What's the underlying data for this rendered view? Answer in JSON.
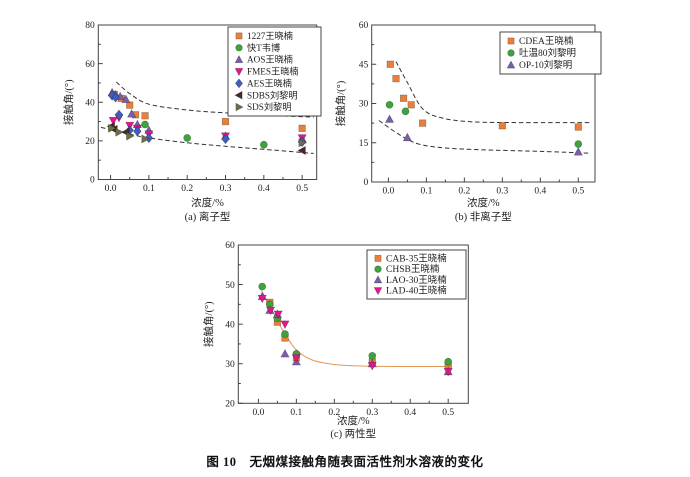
{
  "figure_caption": "图 10　无烟煤接触角随表面活性剂水溶液的变化",
  "chart_data": [
    {
      "id": "chart-a",
      "type": "scatter",
      "title": "(a) 离子型",
      "xlabel": "浓度/%",
      "ylabel": "接触角/(°)",
      "xlim": [
        -0.032,
        0.538
      ],
      "ylim": [
        0,
        80
      ],
      "xticks": [
        "0.0",
        "0.1",
        "0.2",
        "0.3",
        "0.4",
        "0.5"
      ],
      "yticks": [
        "0",
        "20",
        "40",
        "60",
        "80"
      ],
      "legend_position": "top-right",
      "grid": false,
      "series": [
        {
          "name": "1227王晓楠",
          "marker": "square",
          "color": "#E8803C",
          "points": [
            [
              0.01,
              44
            ],
            [
              0.028,
              42
            ],
            [
              0.05,
              38.5
            ],
            [
              0.065,
              33.5
            ],
            [
              0.09,
              33
            ],
            [
              0.3,
              30
            ],
            [
              0.5,
              26.5
            ]
          ]
        },
        {
          "name": "快T韦博",
          "marker": "circle",
          "color": "#3DA43D",
          "points": [
            [
              0.09,
              28.5
            ],
            [
              0.2,
              21.5
            ],
            [
              0.4,
              18
            ]
          ]
        },
        {
          "name": "AOS王晓楠",
          "marker": "triangle-up",
          "color": "#7A5EA8",
          "points": [
            [
              0.004,
              45
            ],
            [
              0.012,
              44
            ],
            [
              0.025,
              43
            ],
            [
              0.04,
              41.5
            ],
            [
              0.055,
              34
            ],
            [
              0.07,
              28.5
            ],
            [
              0.1,
              25.5
            ],
            [
              0.3,
              22.5
            ],
            [
              0.5,
              21
            ]
          ]
        },
        {
          "name": "FMES王晓楠",
          "marker": "triangle-down",
          "color": "#E8138D",
          "points": [
            [
              0.007,
              30.5
            ],
            [
              0.022,
              32
            ],
            [
              0.05,
              28
            ],
            [
              0.07,
              26.5
            ],
            [
              0.1,
              23.5
            ],
            [
              0.3,
              22.5
            ],
            [
              0.5,
              21.5
            ]
          ]
        },
        {
          "name": "AES王晓楠",
          "marker": "diamond",
          "color": "#3D5EC0",
          "points": [
            [
              0.004,
              43.5
            ],
            [
              0.013,
              42.5
            ],
            [
              0.022,
              33.5
            ],
            [
              0.05,
              25.5
            ],
            [
              0.07,
              25
            ],
            [
              0.1,
              21.5
            ],
            [
              0.3,
              21
            ],
            [
              0.5,
              19.5
            ]
          ]
        },
        {
          "name": "SDBS刘黎明",
          "marker": "triangle-left",
          "color": "#4A2630",
          "points": [
            [
              0.002,
              27.5
            ],
            [
              0.009,
              26
            ],
            [
              0.04,
              24.5
            ],
            [
              0.5,
              15
            ]
          ]
        },
        {
          "name": "SDS刘黎明",
          "marker": "triangle-right",
          "color": "#6E6E46",
          "points": [
            [
              0.003,
              26.5
            ],
            [
              0.022,
              24.5
            ],
            [
              0.05,
              22.5
            ],
            [
              0.09,
              21
            ],
            [
              0.5,
              19
            ]
          ]
        }
      ],
      "dashed_curves": [
        {
          "color": "#333333",
          "points": [
            [
              0.015,
              50.5
            ],
            [
              0.05,
              44.5
            ],
            [
              0.1,
              39
            ],
            [
              0.2,
              36
            ],
            [
              0.3,
              34.5
            ],
            [
              0.42,
              33.2
            ],
            [
              0.53,
              32.3
            ]
          ]
        },
        {
          "color": "#333333",
          "points": [
            [
              -0.025,
              27
            ],
            [
              0.05,
              23.5
            ],
            [
              0.1,
              21.5
            ],
            [
              0.2,
              19
            ],
            [
              0.3,
              17.2
            ],
            [
              0.42,
              15.3
            ],
            [
              0.53,
              13.5
            ]
          ]
        }
      ],
      "fit_curve": null
    },
    {
      "id": "chart-b",
      "type": "scatter",
      "title": "(b) 非离子型",
      "xlabel": "浓度/%",
      "ylabel": "接触角/(°)",
      "xlim": [
        -0.044,
        0.544
      ],
      "ylim": [
        0,
        60
      ],
      "xticks": [
        "0.0",
        "0.1",
        "0.2",
        "0.3",
        "0.4",
        "0.5"
      ],
      "yticks": [
        "0",
        "15",
        "30",
        "45",
        "60"
      ],
      "legend_position": "top-right",
      "grid": false,
      "series": [
        {
          "name": "CDEA王晓楠",
          "marker": "square",
          "color": "#E8803C",
          "points": [
            [
              0.005,
              45
            ],
            [
              0.02,
              39.5
            ],
            [
              0.04,
              32
            ],
            [
              0.06,
              29.5
            ],
            [
              0.09,
              22.5
            ],
            [
              0.3,
              21.5
            ],
            [
              0.5,
              21
            ]
          ]
        },
        {
          "name": "吐温80刘黎明",
          "marker": "circle",
          "color": "#3DA43D",
          "points": [
            [
              0.003,
              29.5
            ],
            [
              0.045,
              27
            ],
            [
              0.5,
              14.5
            ]
          ]
        },
        {
          "name": "OP-10刘黎明",
          "marker": "triangle-up",
          "color": "#7A5EA8",
          "points": [
            [
              0.003,
              24
            ],
            [
              0.05,
              17
            ],
            [
              0.5,
              11.5
            ]
          ]
        }
      ],
      "dashed_curves": [
        {
          "color": "#333333",
          "points": [
            [
              0.02,
              46
            ],
            [
              0.05,
              38
            ],
            [
              0.09,
              28
            ],
            [
              0.14,
              24.5
            ],
            [
              0.22,
              23
            ],
            [
              0.35,
              22.7
            ],
            [
              0.53,
              22.7
            ]
          ]
        },
        {
          "color": "#333333",
          "points": [
            [
              -0.025,
              23.5
            ],
            [
              0.03,
              18
            ],
            [
              0.08,
              14.5
            ],
            [
              0.15,
              13
            ],
            [
              0.25,
              12.3
            ],
            [
              0.4,
              11.7
            ],
            [
              0.53,
              11
            ]
          ]
        }
      ],
      "fit_curve": null
    },
    {
      "id": "chart-c",
      "type": "scatter",
      "title": "(c) 两性型",
      "xlabel": "浓度/%",
      "ylabel": "接触角/(°)",
      "xlim": [
        -0.053,
        0.553
      ],
      "ylim": [
        20,
        60
      ],
      "xticks": [
        "0.0",
        "0.1",
        "0.2",
        "0.3",
        "0.4",
        "0.5"
      ],
      "yticks": [
        "20",
        "30",
        "40",
        "50",
        "60"
      ],
      "legend_position": "top-right",
      "grid": false,
      "series": [
        {
          "name": "CAB-35王晓楠",
          "marker": "square",
          "color": "#E8803C",
          "points": [
            [
              0.03,
              45.5
            ],
            [
              0.05,
              40.5
            ],
            [
              0.07,
              36.5
            ],
            [
              0.1,
              31.5
            ],
            [
              0.3,
              30.5
            ],
            [
              0.5,
              29.5
            ]
          ]
        },
        {
          "name": "CHSB王晓楠",
          "marker": "circle",
          "color": "#3DA43D",
          "points": [
            [
              0.01,
              49.5
            ],
            [
              0.03,
              45
            ],
            [
              0.05,
              41.5
            ],
            [
              0.07,
              37.5
            ],
            [
              0.1,
              32.5
            ],
            [
              0.3,
              32
            ],
            [
              0.5,
              30.5
            ]
          ]
        },
        {
          "name": "LAO-30王晓楠",
          "marker": "triangle-up",
          "color": "#7A5EA8",
          "points": [
            [
              0.01,
              47
            ],
            [
              0.03,
              43.5
            ],
            [
              0.05,
              42.5
            ],
            [
              0.07,
              32.5
            ],
            [
              0.1,
              30.5
            ],
            [
              0.3,
              30
            ],
            [
              0.5,
              28
            ]
          ]
        },
        {
          "name": "LAD-40王晓楠",
          "marker": "triangle-down",
          "color": "#E8138D",
          "points": [
            [
              0.01,
              46.5
            ],
            [
              0.032,
              43.5
            ],
            [
              0.052,
              42.5
            ],
            [
              0.07,
              40
            ],
            [
              0.1,
              31.5
            ],
            [
              0.3,
              29.5
            ],
            [
              0.5,
              28
            ]
          ]
        }
      ],
      "dashed_curves": [],
      "fit_curve": {
        "color": "#E09A55",
        "points": [
          [
            0.008,
            48.5
          ],
          [
            0.03,
            44.5
          ],
          [
            0.05,
            41
          ],
          [
            0.07,
            37.5
          ],
          [
            0.1,
            33.5
          ],
          [
            0.14,
            31
          ],
          [
            0.2,
            29.8
          ],
          [
            0.28,
            29.4
          ],
          [
            0.38,
            29.3
          ],
          [
            0.51,
            29.3
          ]
        ]
      }
    }
  ]
}
